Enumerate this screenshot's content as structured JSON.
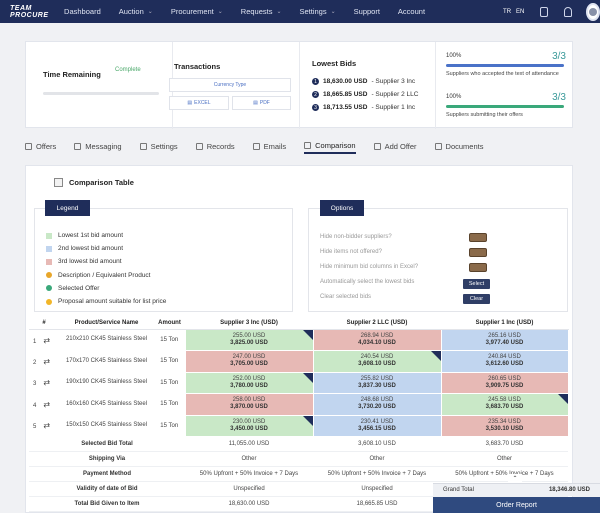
{
  "nav": {
    "logo": "TEAM PROCURE",
    "items": [
      {
        "label": "Dashboard",
        "dropdown": false
      },
      {
        "label": "Auction",
        "dropdown": true
      },
      {
        "label": "Procurement",
        "dropdown": true
      },
      {
        "label": "Requests",
        "dropdown": true
      },
      {
        "label": "Settings",
        "dropdown": true
      },
      {
        "label": "Support",
        "dropdown": false
      },
      {
        "label": "Account",
        "dropdown": false
      }
    ],
    "lang_tr": "TR",
    "lang_en": "EN"
  },
  "summary": {
    "time_remaining_label": "Time Remaining",
    "complete_label": "Complete",
    "transactions_label": "Transactions",
    "currency_type_label": "Currency Type",
    "excel_label": "EXCEL",
    "pdf_label": "PDF",
    "lowest_bids_label": "Lowest Bids",
    "bids": [
      {
        "rank": "1",
        "amount": "18,630.00 USD",
        "supplier": "- Supplier 3 Inc"
      },
      {
        "rank": "2",
        "amount": "18,665.85 USD",
        "supplier": "- Supplier 2 LLC"
      },
      {
        "rank": "3",
        "amount": "18,713.55 USD",
        "supplier": "- Supplier 1 Inc"
      }
    ],
    "stats": [
      {
        "pct": "100%",
        "frac": "3/3",
        "text": "Suppliers who accepted the text of attendance",
        "color": "#4a72c8"
      },
      {
        "pct": "100%",
        "frac": "3/3",
        "text": "Suppliers submitting their offers",
        "color": "#3aa87a"
      }
    ]
  },
  "tabs": [
    {
      "label": "Offers",
      "active": false
    },
    {
      "label": "Messaging",
      "active": false
    },
    {
      "label": "Settings",
      "active": false
    },
    {
      "label": "Records",
      "active": false
    },
    {
      "label": "Emails",
      "active": false
    },
    {
      "label": "Comparison",
      "active": true
    },
    {
      "label": "Add Offer",
      "active": false
    },
    {
      "label": "Documents",
      "active": false
    }
  ],
  "comparison": {
    "title": "Comparison Table",
    "legend_title": "Legend",
    "legend": [
      {
        "label": "Lowest 1st bid amount",
        "color": "#c9e8c7"
      },
      {
        "label": "2nd lowest bid amount",
        "color": "#c1d5ef"
      },
      {
        "label": "3rd lowest bid amount",
        "color": "#e7b9b5"
      },
      {
        "label": "Description / Equivalent Product",
        "color": "#e8a62a"
      },
      {
        "label": "Selected Offer",
        "color": "#3aa87a"
      },
      {
        "label": "Proposal amount suitable for list price",
        "color": "#f2b628"
      }
    ],
    "options_title": "Options",
    "options": [
      "Hide non-bidder suppliers?",
      "Hide items not offered?",
      "Hide minimum bid columns in Excel?",
      "Automatically select the lowest bids",
      "Clear selected bids"
    ],
    "select_label": "Select",
    "clear_label": "Clear",
    "headers": [
      "#",
      "Product/Service Name",
      "Amount",
      "Supplier 3 Inc (USD)",
      "Supplier 2 LLC (USD)",
      "Supplier 1 Inc (USD)"
    ],
    "rows": [
      {
        "no": "1",
        "product": "210x210 CK45 Stainless Steel",
        "amount": "15 Ton",
        "cells": [
          {
            "unit": "255.00 USD",
            "total": "3,825.00 USD",
            "rank": 1,
            "selected": true
          },
          {
            "unit": "268.94 USD",
            "total": "4,034.10 USD",
            "rank": 3,
            "selected": false
          },
          {
            "unit": "265.16 USD",
            "total": "3,977.40 USD",
            "rank": 2,
            "selected": false
          }
        ]
      },
      {
        "no": "2",
        "product": "170x170 CK45 Stainless Steel",
        "amount": "15 Ton",
        "cells": [
          {
            "unit": "247.00 USD",
            "total": "3,705.00 USD",
            "rank": 3,
            "selected": false
          },
          {
            "unit": "240.54 USD",
            "total": "3,608.10 USD",
            "rank": 1,
            "selected": true
          },
          {
            "unit": "240.84 USD",
            "total": "3,612.60 USD",
            "rank": 2,
            "selected": false
          }
        ]
      },
      {
        "no": "3",
        "product": "190x190 CK45 Stainless Steel",
        "amount": "15 Ton",
        "cells": [
          {
            "unit": "252.00 USD",
            "total": "3,780.00 USD",
            "rank": 1,
            "selected": true
          },
          {
            "unit": "255.82 USD",
            "total": "3,837.30 USD",
            "rank": 2,
            "selected": false
          },
          {
            "unit": "260.65 USD",
            "total": "3,909.75 USD",
            "rank": 3,
            "selected": false
          }
        ]
      },
      {
        "no": "4",
        "product": "160x160 CK45 Stainless Steel",
        "amount": "15 Ton",
        "cells": [
          {
            "unit": "258.00 USD",
            "total": "3,870.00 USD",
            "rank": 3,
            "selected": false
          },
          {
            "unit": "248.68 USD",
            "total": "3,730.20 USD",
            "rank": 2,
            "selected": false
          },
          {
            "unit": "245.58 USD",
            "total": "3,683.70 USD",
            "rank": 1,
            "selected": true
          }
        ]
      },
      {
        "no": "5",
        "product": "150x150 CK45 Stainless Steel",
        "amount": "15 Ton",
        "cells": [
          {
            "unit": "230.00 USD",
            "total": "3,450.00 USD",
            "rank": 1,
            "selected": true
          },
          {
            "unit": "230.41 USD",
            "total": "3,456.15 USD",
            "rank": 2,
            "selected": false
          },
          {
            "unit": "235.34 USD",
            "total": "3,530.10 USD",
            "rank": 3,
            "selected": false
          }
        ]
      }
    ],
    "summary_rows": [
      {
        "label": "Selected Bid Total",
        "values": [
          "11,055.00 USD",
          "3,608.10 USD",
          "3,683.70 USD"
        ]
      },
      {
        "label": "Shipping Via",
        "values": [
          "Other",
          "Other",
          "Other"
        ]
      },
      {
        "label": "Payment Method",
        "values": [
          "50% Upfront + 50% Invoice + 7 Days",
          "50% Upfront + 50% Invoice + 7 Days",
          "50% Upfront + 50% Invoice + 7 Days"
        ]
      },
      {
        "label": "Validity of date of Bid",
        "values": [
          "Unspecified",
          "Unspecified",
          "Unspecified"
        ]
      },
      {
        "label": "Total Bid Given to Item",
        "values": [
          "18,630.00 USD",
          "18,665.85 USD",
          ""
        ]
      }
    ]
  },
  "footer": {
    "grand_total_label": "Grand Total",
    "grand_total_value": "18,346.80 USD",
    "order_report_label": "Order Report"
  }
}
